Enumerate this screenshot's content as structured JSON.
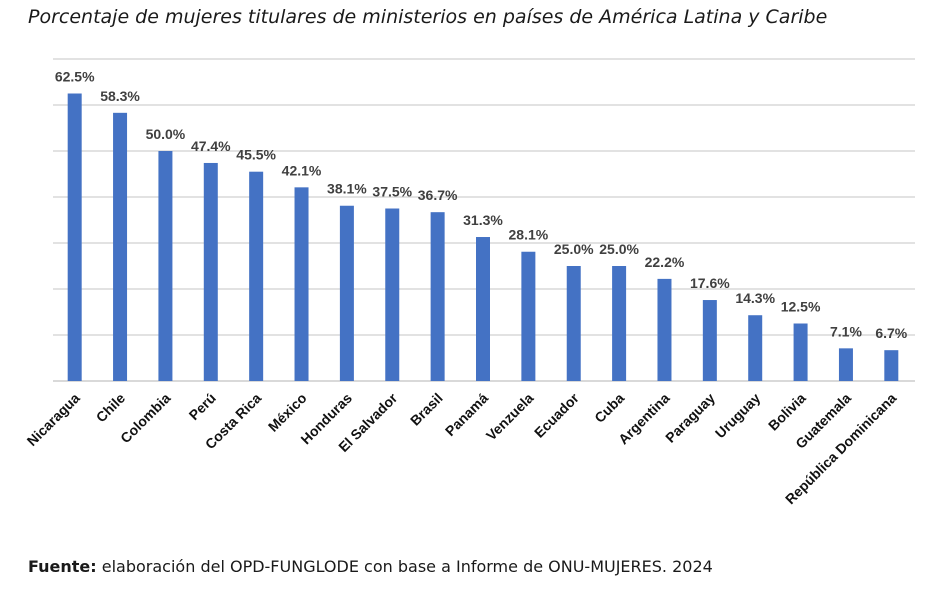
{
  "chart_data": {
    "type": "bar",
    "title": "Porcentaje de mujeres titulares de ministerios en países de América Latina y Caribe",
    "xlabel": "",
    "ylabel": "",
    "ylim": [
      0,
      70
    ],
    "grid": true,
    "legend": "none",
    "bar_color": "#4472C4",
    "grid_color": "#D9D9D9",
    "categories": [
      "Nicaragua",
      "Chile",
      "Colombia",
      "Perú",
      "Costa Rica",
      "México",
      "Honduras",
      "El Salvador",
      "Brasil",
      "Panamá",
      "Venzuela",
      "Ecuador",
      "Cuba",
      "Argentina",
      "Paraguay",
      "Uruguay",
      "Bolivia",
      "Guatemala",
      "República Dominicana"
    ],
    "values": [
      62.5,
      58.3,
      50.0,
      47.4,
      45.5,
      42.1,
      38.1,
      37.5,
      36.7,
      31.3,
      28.1,
      25.0,
      25.0,
      22.2,
      17.6,
      14.3,
      12.5,
      7.1,
      6.7
    ],
    "labels": [
      "62.5%",
      "58.3%",
      "50.0%",
      "47.4%",
      "45.5%",
      "42.1%",
      "38.1%",
      "37.5%",
      "36.7%",
      "31.3%",
      "28.1%",
      "25.0%",
      "25.0%",
      "22.2%",
      "17.6%",
      "14.3%",
      "12.5%",
      "7.1%",
      "6.7%"
    ]
  },
  "source": {
    "label": "Fuente:",
    "text": " elaboración del OPD-FUNGLODE con base a Informe de ONU-MUJERES. 2024"
  }
}
